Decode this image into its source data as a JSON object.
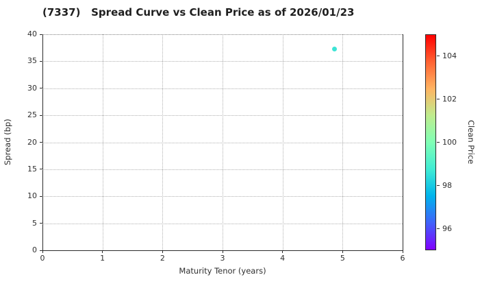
{
  "chart_data": {
    "type": "scatter",
    "title": "(7337)   Spread Curve vs Clean Price as of 2026/01/23",
    "xlabel": "Maturity Tenor (years)",
    "ylabel": "Spread (bp)",
    "xlim": [
      0,
      6
    ],
    "ylim": [
      0,
      40
    ],
    "x_ticks": [
      0,
      1,
      2,
      3,
      4,
      5,
      6
    ],
    "y_ticks": [
      0,
      5,
      10,
      15,
      20,
      25,
      30,
      35,
      40
    ],
    "grid": "dotted, both axes",
    "legend_position": "none",
    "points": [
      {
        "x": 4.86,
        "y": 37.3,
        "clean_price": 98.7,
        "color": "#3de4d5"
      }
    ],
    "colorbar": {
      "label": "Clean Price",
      "ticks": [
        96,
        98,
        100,
        102,
        104
      ],
      "vmin": 95.0,
      "vmax": 105.0,
      "colormap": "rainbow",
      "gradient_stops": [
        "#8000FF",
        "#4062FA",
        "#00B4EC",
        "#40ECD4",
        "#80FFB5",
        "#BFEC8E",
        "#FFB462",
        "#FF6232",
        "#FF0000"
      ]
    }
  },
  "colors": {
    "background": "#ffffff",
    "title_text": "#1f1f1f",
    "tick_text": "#2e2e2e",
    "spine": "#2a2a2a",
    "gridline": "#b0b0b0",
    "point": "#3de4d5"
  }
}
